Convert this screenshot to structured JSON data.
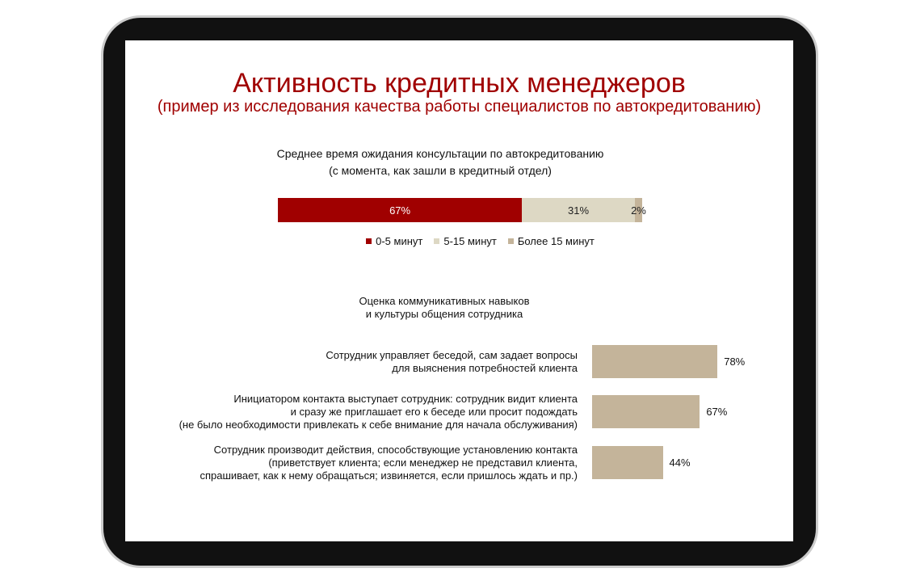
{
  "slide": {
    "title": "Активность кредитных менеджеров",
    "subtitle": "(пример из исследования качества работы специалистов по автокредитованию)"
  },
  "chart_data": [
    {
      "type": "stacked-bar",
      "title": "Среднее время ожидания консультации по автокредитованию",
      "subtitle": "(с момента, как зашли в кредитный отдел)",
      "series": [
        {
          "name": "0-5 минут",
          "color": "#a00000",
          "values": [
            67
          ],
          "value_labels": [
            "67%"
          ]
        },
        {
          "name": "5-15 минут",
          "color": "#ddd8c4",
          "values": [
            31
          ],
          "value_labels": [
            "31%"
          ]
        },
        {
          "name": "Более 15 минут",
          "color": "#c4b49a",
          "values": [
            2
          ],
          "value_labels": [
            "2%"
          ]
        }
      ]
    },
    {
      "type": "hbar",
      "title": "Оценка коммуникативных навыков\nи культуры общения сотрудника",
      "color": "#c4b49a",
      "categories": [
        "Сотрудник управляет беседой, сам задает вопросы\nдля выяснения потребностей клиента",
        "Инициатором контакта выступает сотрудник: сотрудник видит клиента\nи сразу же приглашает его к беседе или просит подождать\n(не было необходимости привлекать к себе внимание для начала обслуживания)",
        "Сотрудник производит действия, способствующие установлению контакта\n(приветствует клиента; если менеджер не представил клиента,\nспрашивает, как к нему обращаться; извиняется, если пришлось ждать и пр.)"
      ],
      "values": [
        78,
        67,
        44
      ],
      "value_labels": [
        "78%",
        "67%",
        "44%"
      ]
    }
  ]
}
